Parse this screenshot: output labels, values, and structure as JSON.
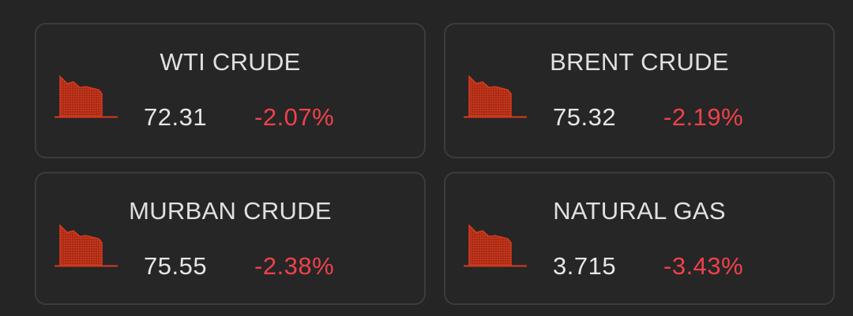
{
  "commodities": [
    {
      "name": "WTI CRUDE",
      "price": "72.31",
      "change": "-2.07%",
      "trend_icon": "downtrend-chart-icon"
    },
    {
      "name": "BRENT CRUDE",
      "price": "75.32",
      "change": "-2.19%",
      "trend_icon": "downtrend-chart-icon"
    },
    {
      "name": "MURBAN CRUDE",
      "price": "75.55",
      "change": "-2.38%",
      "trend_icon": "downtrend-chart-icon"
    },
    {
      "name": "NATURAL GAS",
      "price": "3.715",
      "change": "-3.43%",
      "trend_icon": "downtrend-chart-icon"
    }
  ],
  "colors": {
    "background": "#252525",
    "card_border": "#3c3c3c",
    "title_text": "#e0e0e0",
    "price_text": "#e6e6e6",
    "negative_change": "#f0414b",
    "chart_icon": "#c8321c"
  }
}
